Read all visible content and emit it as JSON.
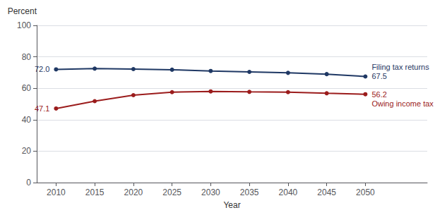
{
  "chart_data": {
    "type": "line",
    "x": [
      2010,
      2015,
      2020,
      2025,
      2030,
      2035,
      2040,
      2045,
      2050
    ],
    "series": [
      {
        "name": "Filing tax returns",
        "color": "#1F3864",
        "values": [
          72.0,
          72.5,
          72.2,
          71.8,
          71.0,
          70.4,
          69.8,
          69.0,
          67.5
        ],
        "value_labels": [
          "72.0",
          null,
          null,
          null,
          null,
          null,
          null,
          null,
          "67.5"
        ]
      },
      {
        "name": "Owing income tax",
        "color": "#9B1C1C",
        "values": [
          47.1,
          51.8,
          55.6,
          57.5,
          58.0,
          57.7,
          57.5,
          56.8,
          56.2
        ],
        "value_labels": [
          "47.1",
          null,
          null,
          null,
          null,
          null,
          null,
          null,
          "56.2"
        ]
      }
    ],
    "marker": "circle",
    "xlabel": "Year",
    "ylabel": "Percent",
    "xlim": [
      2007.5,
      2058
    ],
    "xticks": [
      2010,
      2015,
      2020,
      2025,
      2030,
      2035,
      2040,
      2045,
      2050
    ],
    "ylim": [
      0,
      100
    ],
    "yticks": [
      0,
      20,
      40,
      60,
      80,
      100
    ],
    "grid": true
  }
}
